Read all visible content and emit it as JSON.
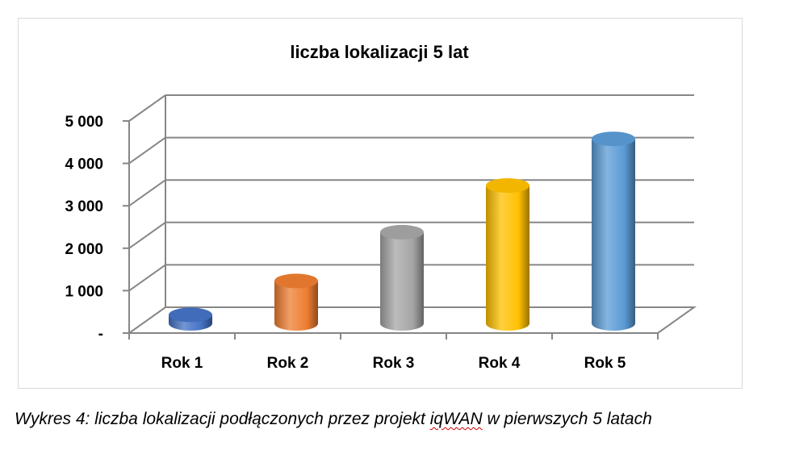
{
  "chart_data": {
    "type": "bar",
    "title": "liczba lokalizacji 5 lat",
    "categories": [
      "Rok 1",
      "Rok 2",
      "Rok 3",
      "Rok 4",
      "Rok 5"
    ],
    "values": [
      200,
      1000,
      2150,
      3250,
      4350
    ],
    "ylim": [
      0,
      5000
    ],
    "yticks": [
      0,
      1000,
      2000,
      3000,
      4000,
      5000
    ],
    "ytick_labels": [
      "-",
      "1 000",
      "2 000",
      "3 000",
      "4 000",
      "5 000"
    ],
    "colors": [
      "#4472c4",
      "#ed7d31",
      "#a5a5a5",
      "#ffc000",
      "#5b9bd5"
    ],
    "grid": true,
    "legend": "none"
  },
  "caption": {
    "prefix": "Wykres 4: liczba lokalizacji podłączonych przez projekt ",
    "marked": "iqWAN",
    "suffix": " w pierwszych 5 latach"
  }
}
